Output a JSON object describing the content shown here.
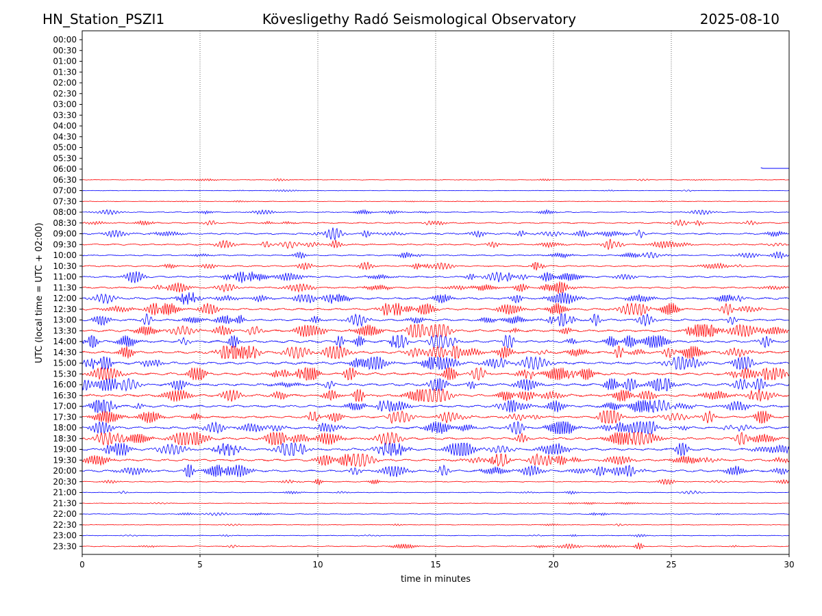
{
  "header": {
    "station": "HN_Station_PSZI1",
    "observatory": "Kövesligethy Radó Seismological Observatory",
    "date": "2025-08-10"
  },
  "chart_data": {
    "type": "line",
    "xlabel": "time in minutes",
    "ylabel": "UTC (local time = UTC + 02:00)",
    "xlim": [
      0,
      30
    ],
    "x_ticks": [
      0,
      5,
      10,
      15,
      20,
      25,
      30
    ],
    "vertical_gridlines_at": [
      5,
      10,
      15,
      20,
      25
    ],
    "y_tick_labels": [
      "00:00",
      "00:30",
      "01:00",
      "01:30",
      "02:00",
      "02:30",
      "03:00",
      "03:30",
      "04:00",
      "04:30",
      "05:00",
      "05:30",
      "06:00",
      "06:30",
      "07:00",
      "07:30",
      "08:00",
      "08:30",
      "09:00",
      "09:30",
      "10:00",
      "10:30",
      "11:00",
      "11:30",
      "12:00",
      "12:30",
      "13:00",
      "13:30",
      "14:00",
      "14:30",
      "15:00",
      "15:30",
      "16:00",
      "16:30",
      "17:00",
      "17:30",
      "18:00",
      "18:30",
      "19:00",
      "19:30",
      "20:00",
      "20:30",
      "21:00",
      "21:30",
      "22:00",
      "22:30",
      "23:00",
      "23:30"
    ],
    "trace_colors": [
      "#0000ff",
      "#ff0000"
    ],
    "data_start": {
      "row": "06:00",
      "minute": 28.8
    },
    "relative_activity_by_row": {
      "06:30": 0.15,
      "07:00": 0.1,
      "07:30": 0.15,
      "08:00": 0.3,
      "08:30": 0.45,
      "09:00": 0.6,
      "09:30": 0.55,
      "10:00": 0.45,
      "10:30": 0.5,
      "11:00": 0.6,
      "11:30": 0.6,
      "12:00": 0.75,
      "12:30": 0.8,
      "13:00": 0.85,
      "13:30": 0.9,
      "14:00": 0.95,
      "14:30": 1.0,
      "15:00": 1.0,
      "15:30": 1.0,
      "16:00": 1.0,
      "16:30": 0.95,
      "17:00": 0.9,
      "17:30": 0.85,
      "18:00": 0.9,
      "18:30": 0.9,
      "19:00": 0.9,
      "19:30": 0.85,
      "20:00": 0.8,
      "20:30": 0.3,
      "21:00": 0.2,
      "21:30": 0.1,
      "22:00": 0.2,
      "22:30": 0.15,
      "23:00": 0.2,
      "23:30": 0.3
    }
  }
}
